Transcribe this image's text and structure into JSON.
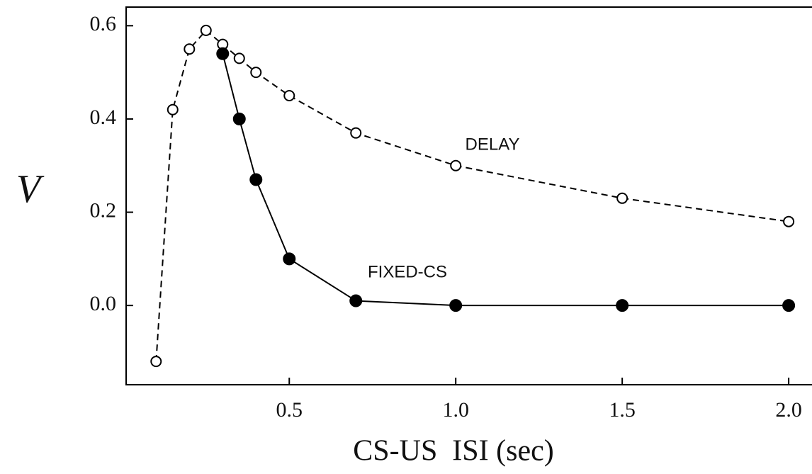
{
  "chart_data": {
    "type": "line",
    "xlabel": "CS-US  ISI (sec)",
    "ylabel": "V",
    "xlim": [
      0.01,
      2.07
    ],
    "ylim": [
      -0.17,
      0.64
    ],
    "xticks": [
      0.5,
      {
        "value": 1,
        "label": "1.0"
      },
      1.5,
      {
        "value": 2,
        "label": "2.0"
      }
    ],
    "yticks": [
      {
        "value": 0,
        "label": "0.0"
      },
      0.2,
      0.4,
      0.6
    ],
    "series": [
      {
        "name": "DELAY",
        "color": "#000000",
        "dashed": true,
        "marker": "open",
        "x": [
          0.1,
          0.15,
          0.2,
          0.25,
          0.3,
          0.35,
          0.4,
          0.5,
          0.7,
          1,
          1.5,
          2
        ],
        "values": [
          -0.12,
          0.42,
          0.55,
          0.59,
          0.56,
          0.53,
          0.5,
          0.45,
          0.37,
          0.3,
          0.23,
          0.18
        ]
      },
      {
        "name": "FIXED-CS",
        "color": "#000000",
        "dashed": false,
        "marker": "filled",
        "x": [
          0.3,
          0.35,
          0.4,
          0.5,
          0.7,
          1,
          1.5,
          2
        ],
        "values": [
          0.54,
          0.4,
          0.27,
          0.1,
          0.01,
          0,
          0,
          0
        ]
      }
    ]
  }
}
